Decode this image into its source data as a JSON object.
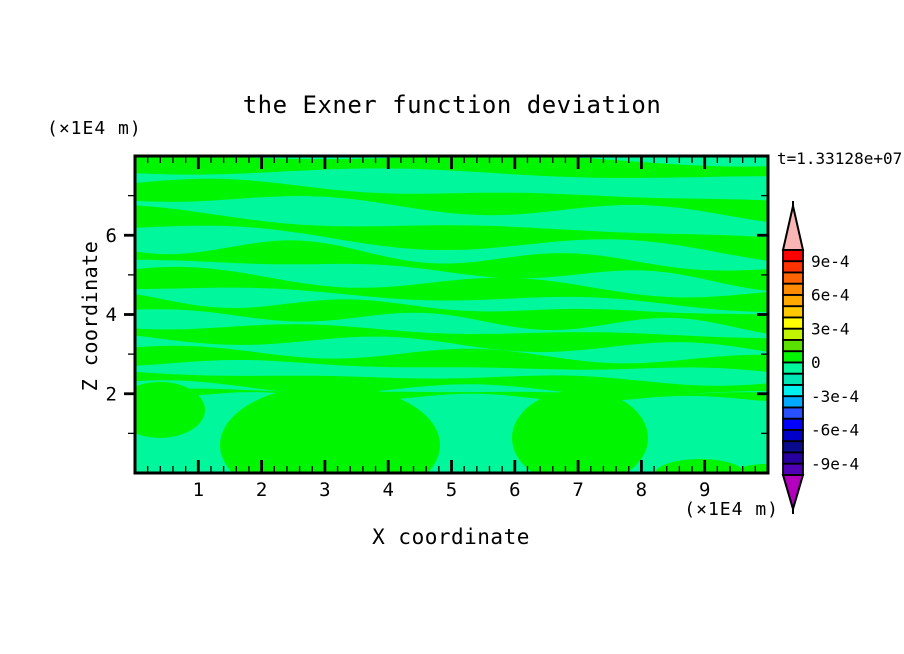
{
  "chart_data": {
    "type": "contour",
    "title": "the Exner function deviation",
    "xlabel": "X coordinate",
    "ylabel": "Z coordinate",
    "x_unit_label": "(×1E4 m)",
    "z_unit_label": "(×1E4 m)",
    "annotation": "t=1.33128e+07",
    "x_range": [
      0,
      10
    ],
    "z_range": [
      0,
      8
    ],
    "x_major_ticks": [
      1,
      2,
      3,
      4,
      5,
      6,
      7,
      8,
      9
    ],
    "x_minor_step": 0.2,
    "z_major_ticks": [
      2,
      4,
      6
    ],
    "z_minor_ticks": [
      1,
      3,
      5,
      7
    ],
    "grid": false,
    "field": {
      "description": "Deviation field: wavy horizontal bands alternating between slightly positive (bright green, 0..1e-4) and slightly negative (spring green, -1e-4..0); larger blobs near the lower boundary",
      "positive_color": "#00f500",
      "negative_color": "#00f79b",
      "stripes": [
        {
          "c": 0.018,
          "t": 15,
          "slope": 8,
          "amp": 2.5,
          "freq": 1.3,
          "phase": 0.6,
          "tmod": 0.35,
          "tfreq": 1.6,
          "tphase": 1.2
        },
        {
          "c": 0.105,
          "t": 15,
          "slope": 20,
          "amp": 4.0,
          "freq": 1.7,
          "phase": 2.4,
          "tmod": 0.5,
          "tfreq": 2.1,
          "tphase": 0.4
        },
        {
          "c": 0.205,
          "t": 16,
          "slope": 26,
          "amp": 5.0,
          "freq": 1.4,
          "phase": 4.2,
          "tmod": 0.55,
          "tfreq": 1.8,
          "tphase": 2.3
        },
        {
          "c": 0.3,
          "t": 15,
          "slope": 24,
          "amp": 5.0,
          "freq": 2.1,
          "phase": 1.1,
          "tmod": 0.6,
          "tfreq": 2.5,
          "tphase": 4.0
        },
        {
          "c": 0.392,
          "t": 14,
          "slope": 20,
          "amp": 4.5,
          "freq": 1.9,
          "phase": 3.4,
          "tmod": 0.55,
          "tfreq": 2.0,
          "tphase": 0.9
        },
        {
          "c": 0.472,
          "t": 13,
          "slope": 16,
          "amp": 4.0,
          "freq": 2.3,
          "phase": 5.1,
          "tmod": 0.6,
          "tfreq": 2.7,
          "tphase": 2.8
        },
        {
          "c": 0.552,
          "t": 13,
          "slope": 13,
          "amp": 3.5,
          "freq": 2.0,
          "phase": 0.3,
          "tmod": 0.5,
          "tfreq": 2.2,
          "tphase": 5.1
        },
        {
          "c": 0.63,
          "t": 12,
          "slope": 10,
          "amp": 3.0,
          "freq": 2.4,
          "phase": 2.9,
          "tmod": 0.55,
          "tfreq": 1.9,
          "tphase": 1.5
        },
        {
          "c": 0.705,
          "t": 12,
          "slope": 8,
          "amp": 3.0,
          "freq": 1.8,
          "phase": 4.5,
          "tmod": 0.5,
          "tfreq": 2.3,
          "tphase": 3.6
        },
        {
          "c": 0.745,
          "t": 5,
          "slope": 5,
          "amp": 2.0,
          "freq": 2.7,
          "phase": 1.8,
          "tmod": 0.7,
          "tfreq": 3.1,
          "tphase": 0.7
        }
      ],
      "blobs": [
        {
          "cx": 0.0395,
          "cy": 0.801,
          "rx": 0.0711,
          "ry": 0.0883,
          "sign": "positive"
        },
        {
          "cx": 0.308,
          "cy": 0.9117,
          "rx": 0.1738,
          "ry": 0.1893,
          "sign": "positive"
        },
        {
          "cx": 0.703,
          "cy": 0.8896,
          "rx": 0.1074,
          "ry": 0.1514,
          "sign": "positive"
        },
        {
          "cx": 0.8926,
          "cy": 1.003,
          "rx": 0.0711,
          "ry": 0.0473,
          "sign": "positive"
        },
        {
          "cx": 0.9953,
          "cy": 1.003,
          "rx": 0.0474,
          "ry": 0.0315,
          "sign": "positive"
        }
      ]
    },
    "colorbar": {
      "labels": [
        "9e-4",
        "6e-4",
        "3e-4",
        "0",
        "-3e-4",
        "-6e-4",
        "-9e-4"
      ],
      "label_boundary_indices": [
        1,
        4,
        7,
        10,
        13,
        16,
        19
      ],
      "segment_colors": [
        "#fc0000",
        "#ff3200",
        "#ff6400",
        "#ff8c00",
        "#ffa800",
        "#ffc800",
        "#ffff00",
        "#c0f400",
        "#5ae100",
        "#00f500",
        "#00f79b",
        "#00e6b4",
        "#00f0f0",
        "#00aaff",
        "#2850ff",
        "#0000ff",
        "#0000c8",
        "#0a0a8c",
        "#2800a0",
        "#5000b4"
      ],
      "over_arrow_color": "#f9b4b4",
      "under_arrow_color": "#b400be"
    }
  }
}
